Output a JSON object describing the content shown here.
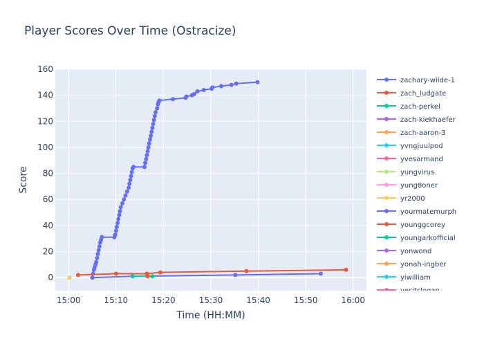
{
  "chart_data": {
    "type": "line",
    "title": "Player Scores Over Time (Ostracize)",
    "xlabel": "Time (HH:MM)",
    "ylabel": "Score",
    "x_ticks": [
      "15:00",
      "15:10",
      "15:20",
      "15:30",
      "15:40",
      "15:50",
      "16:00"
    ],
    "y_ticks": [
      0,
      20,
      40,
      60,
      80,
      100,
      120,
      140,
      160
    ],
    "x_range_minutes_after_15_00": [
      -2.8,
      62.8
    ],
    "ylim": [
      -10,
      160
    ],
    "grid": true,
    "legend_position": "right",
    "series": [
      {
        "name": "zachary-wilde-1",
        "color": "#636efa",
        "points": [
          [
            "15:05:00",
            0
          ],
          [
            "15:05:10",
            3
          ],
          [
            "15:05:20",
            6
          ],
          [
            "15:05:30",
            8
          ],
          [
            "15:05:40",
            10
          ],
          [
            "15:05:50",
            12
          ],
          [
            "15:06:00",
            15
          ],
          [
            "15:06:10",
            18
          ],
          [
            "15:06:20",
            21
          ],
          [
            "15:06:30",
            24
          ],
          [
            "15:06:40",
            27
          ],
          [
            "15:06:50",
            29
          ],
          [
            "15:07:00",
            31
          ],
          [
            "15:09:40",
            31
          ],
          [
            "15:09:50",
            33
          ],
          [
            "15:10:00",
            36
          ],
          [
            "15:10:10",
            39
          ],
          [
            "15:10:20",
            42
          ],
          [
            "15:10:30",
            45
          ],
          [
            "15:10:40",
            48
          ],
          [
            "15:10:50",
            51
          ],
          [
            "15:11:00",
            54
          ],
          [
            "15:11:20",
            57
          ],
          [
            "15:11:40",
            60
          ],
          [
            "15:12:00",
            63
          ],
          [
            "15:12:20",
            66
          ],
          [
            "15:12:40",
            69
          ],
          [
            "15:12:50",
            72
          ],
          [
            "15:13:00",
            75
          ],
          [
            "15:13:10",
            78
          ],
          [
            "15:13:20",
            81
          ],
          [
            "15:13:30",
            84
          ],
          [
            "15:13:40",
            85
          ],
          [
            "15:16:00",
            85
          ],
          [
            "15:16:10",
            88
          ],
          [
            "15:16:20",
            91
          ],
          [
            "15:16:30",
            94
          ],
          [
            "15:16:40",
            97
          ],
          [
            "15:16:50",
            100
          ],
          [
            "15:17:00",
            103
          ],
          [
            "15:17:10",
            106
          ],
          [
            "15:17:20",
            109
          ],
          [
            "15:17:30",
            112
          ],
          [
            "15:17:40",
            115
          ],
          [
            "15:17:50",
            118
          ],
          [
            "15:18:00",
            121
          ],
          [
            "15:18:10",
            124
          ],
          [
            "15:18:20",
            127
          ],
          [
            "15:18:40",
            130
          ],
          [
            "15:18:50",
            133
          ],
          [
            "15:19:00",
            135
          ],
          [
            "15:19:10",
            136
          ],
          [
            "15:22:00",
            137
          ],
          [
            "15:24:40",
            138
          ],
          [
            "15:24:50",
            139
          ],
          [
            "15:26:00",
            140
          ],
          [
            "15:26:30",
            141
          ],
          [
            "15:27:10",
            143
          ],
          [
            "15:28:30",
            144
          ],
          [
            "15:30:10",
            145
          ],
          [
            "15:30:20",
            146
          ],
          [
            "15:32:10",
            147
          ],
          [
            "15:34:20",
            148
          ],
          [
            "15:35:20",
            149
          ],
          [
            "15:39:50",
            150
          ]
        ]
      },
      {
        "name": "zach_ludgate",
        "color": "#ef553b",
        "points": [
          [
            "15:02:00",
            2
          ],
          [
            "15:10:00",
            3
          ],
          [
            "15:16:30",
            3
          ],
          [
            "15:19:20",
            4
          ],
          [
            "15:37:30",
            5
          ],
          [
            "15:58:30",
            6
          ]
        ]
      },
      {
        "name": "zach-perkel",
        "color": "#00cc96",
        "points": [
          [
            "15:13:30",
            1
          ],
          [
            "15:17:40",
            1
          ]
        ]
      },
      {
        "name": "zach-kiekhaefer",
        "color": "#ab63fa",
        "points": []
      },
      {
        "name": "zach-aaron-3",
        "color": "#ffa15a",
        "points": [
          [
            "15:00:10",
            0
          ]
        ]
      },
      {
        "name": "yvngjuulpod",
        "color": "#19d3f3",
        "points": []
      },
      {
        "name": "yvesarmand",
        "color": "#ff6692",
        "points": []
      },
      {
        "name": "yungvirus",
        "color": "#b6e880",
        "points": []
      },
      {
        "name": "yung8oner",
        "color": "#ff97ff",
        "points": []
      },
      {
        "name": "yr2000",
        "color": "#fecb52",
        "points": [
          [
            "15:00:10",
            0
          ]
        ]
      },
      {
        "name": "yourmatemurph",
        "color": "#636efa",
        "points": [
          [
            "15:05:00",
            0
          ],
          [
            "15:13:30",
            1
          ],
          [
            "15:35:10",
            2
          ],
          [
            "15:53:10",
            3
          ]
        ]
      },
      {
        "name": "younggcorey",
        "color": "#ef553b",
        "points": [
          [
            "15:16:40",
            1
          ]
        ]
      },
      {
        "name": "youngarkofficial",
        "color": "#00cc96",
        "points": []
      },
      {
        "name": "yonwond",
        "color": "#ab63fa",
        "points": []
      },
      {
        "name": "yonah-ingber",
        "color": "#ffa15a",
        "points": []
      },
      {
        "name": "yiwilliam",
        "color": "#19d3f3",
        "points": []
      },
      {
        "name": "yesitslogan",
        "color": "#ff6692",
        "points": []
      }
    ]
  }
}
